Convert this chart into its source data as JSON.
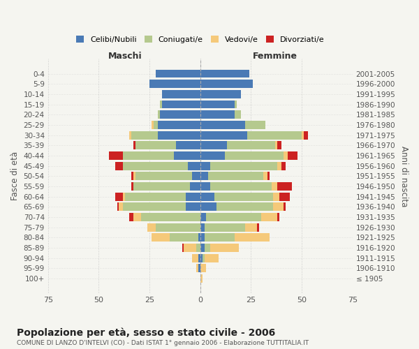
{
  "age_groups": [
    "100+",
    "95-99",
    "90-94",
    "85-89",
    "80-84",
    "75-79",
    "70-74",
    "65-69",
    "60-64",
    "55-59",
    "50-54",
    "45-49",
    "40-44",
    "35-39",
    "30-34",
    "25-29",
    "20-24",
    "15-19",
    "10-14",
    "5-9",
    "0-4"
  ],
  "birth_years": [
    "≤ 1905",
    "1906-1910",
    "1911-1915",
    "1916-1920",
    "1921-1925",
    "1926-1930",
    "1931-1935",
    "1936-1940",
    "1941-1945",
    "1946-1950",
    "1951-1955",
    "1956-1960",
    "1961-1965",
    "1966-1970",
    "1971-1975",
    "1976-1980",
    "1981-1985",
    "1986-1990",
    "1991-1995",
    "1996-2000",
    "2001-2005"
  ],
  "male_celibi": [
    0,
    1,
    1,
    0,
    1,
    0,
    0,
    7,
    7,
    5,
    4,
    6,
    13,
    12,
    21,
    21,
    20,
    19,
    19,
    25,
    22
  ],
  "male_coniugati": [
    0,
    0,
    0,
    2,
    14,
    22,
    29,
    31,
    30,
    28,
    28,
    32,
    25,
    20,
    13,
    2,
    1,
    1,
    0,
    0,
    0
  ],
  "male_vedovi": [
    0,
    1,
    3,
    6,
    9,
    4,
    4,
    2,
    1,
    0,
    1,
    0,
    0,
    0,
    1,
    1,
    0,
    0,
    0,
    0,
    0
  ],
  "male_divorziati": [
    0,
    0,
    0,
    1,
    0,
    0,
    2,
    1,
    4,
    1,
    1,
    4,
    7,
    1,
    0,
    0,
    0,
    0,
    0,
    0,
    0
  ],
  "female_celibi": [
    0,
    0,
    1,
    2,
    2,
    2,
    3,
    8,
    7,
    5,
    4,
    5,
    12,
    13,
    23,
    22,
    17,
    17,
    20,
    26,
    24
  ],
  "female_coniugati": [
    0,
    0,
    1,
    3,
    15,
    20,
    27,
    28,
    29,
    30,
    27,
    33,
    29,
    24,
    27,
    10,
    3,
    1,
    0,
    0,
    0
  ],
  "female_vedovi": [
    1,
    3,
    7,
    14,
    17,
    6,
    8,
    5,
    3,
    3,
    2,
    2,
    2,
    1,
    1,
    0,
    0,
    0,
    0,
    0,
    0
  ],
  "female_divorziati": [
    0,
    0,
    0,
    0,
    0,
    1,
    1,
    1,
    5,
    7,
    1,
    2,
    5,
    2,
    2,
    0,
    0,
    0,
    0,
    0,
    0
  ],
  "color_celibi": "#4a7ab5",
  "color_coniugati": "#b5c98e",
  "color_vedovi": "#f5c97a",
  "color_divorziati": "#cc2222",
  "xlim": 75,
  "title": "Popolazione per età, sesso e stato civile - 2006",
  "subtitle": "COMUNE DI LANZO D'INTELVI (CO) - Dati ISTAT 1° gennaio 2006 - Elaborazione TUTTITALIA.IT",
  "ylabel_left": "Fasce di età",
  "ylabel_right": "Anni di nascita",
  "xlabel_male": "Maschi",
  "xlabel_female": "Femmine",
  "background_color": "#f5f5f0",
  "legend_labels": [
    "Celibi/Nubili",
    "Coniugati/e",
    "Vedovi/e",
    "Divorziati/e"
  ]
}
